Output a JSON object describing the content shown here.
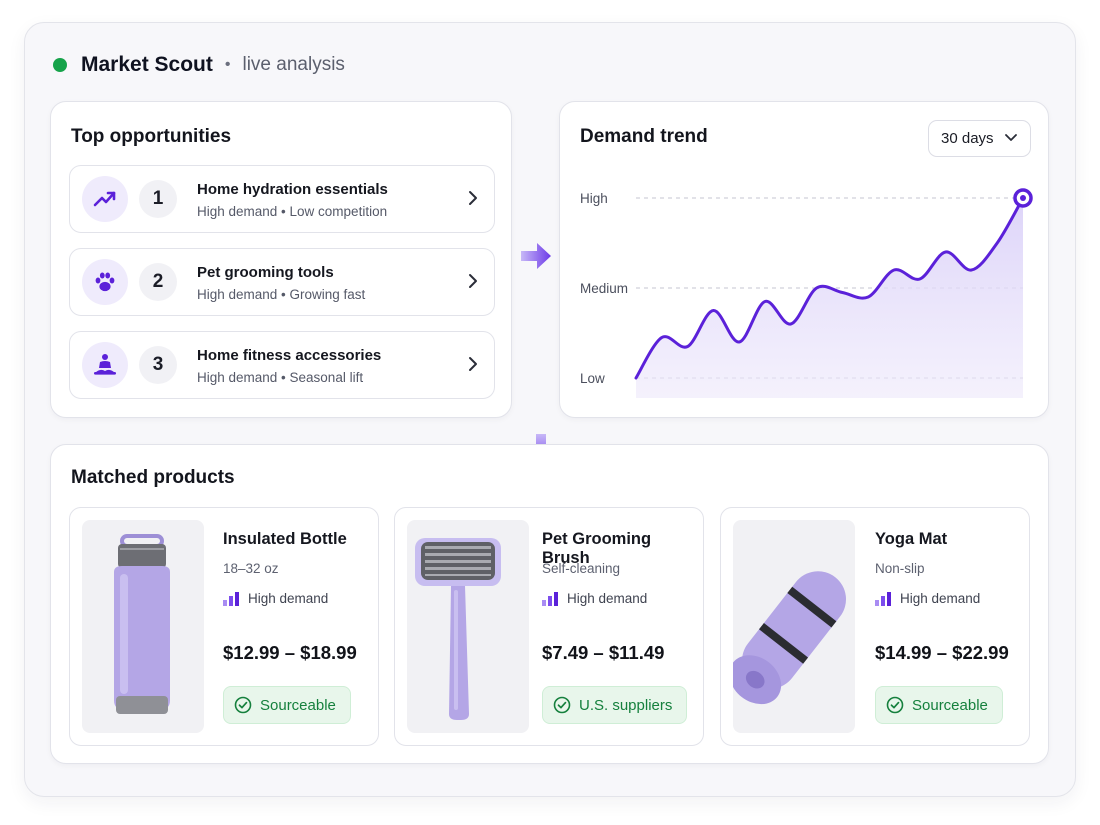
{
  "header": {
    "app_name": "Market Scout",
    "separator": "•",
    "status": "live analysis",
    "status_color": "#16a34a"
  },
  "opportunities": {
    "title": "Top opportunities",
    "items": [
      {
        "rank": "1",
        "title": "Home hydration essentials",
        "meta": "High demand • Low competition",
        "icon": "trending-up-icon"
      },
      {
        "rank": "2",
        "title": "Pet grooming tools",
        "meta": "High demand • Growing fast",
        "icon": "paw-icon"
      },
      {
        "rank": "3",
        "title": "Home fitness accessories",
        "meta": "High demand • Seasonal lift",
        "icon": "meditation-icon"
      }
    ]
  },
  "trend": {
    "title": "Demand trend",
    "range": "30 days",
    "accent": "#5b21d9"
  },
  "chart_data": {
    "type": "area",
    "title": "Demand trend",
    "y_levels": [
      "Low",
      "Medium",
      "High"
    ],
    "ylim": [
      0,
      2
    ],
    "x": [
      0,
      1,
      2,
      3,
      4,
      5,
      6,
      7,
      8,
      9,
      10,
      11,
      12,
      13,
      14,
      15
    ],
    "values": [
      0.0,
      0.45,
      0.35,
      0.75,
      0.4,
      0.85,
      0.6,
      1.0,
      0.95,
      0.9,
      1.2,
      1.1,
      1.4,
      1.2,
      1.5,
      2.0
    ],
    "grid": true,
    "legend": "none"
  },
  "products": {
    "title": "Matched products",
    "items": [
      {
        "name": "Insulated Bottle",
        "variant": "18–32 oz",
        "demand": "High demand",
        "price": "$12.99 – $18.99",
        "badge": "Sourceable",
        "image": "bottle"
      },
      {
        "name": "Pet Grooming Brush",
        "variant": "Self-cleaning",
        "demand": "High demand",
        "price": "$7.49 – $11.49",
        "badge": "U.S. suppliers",
        "image": "brush"
      },
      {
        "name": "Yoga Mat",
        "variant": "Non-slip",
        "demand": "High demand",
        "price": "$14.99 – $22.99",
        "badge": "Sourceable",
        "image": "yoga-mat"
      }
    ],
    "badge_color": "#15803d",
    "product_color": "#b3a4e8"
  }
}
